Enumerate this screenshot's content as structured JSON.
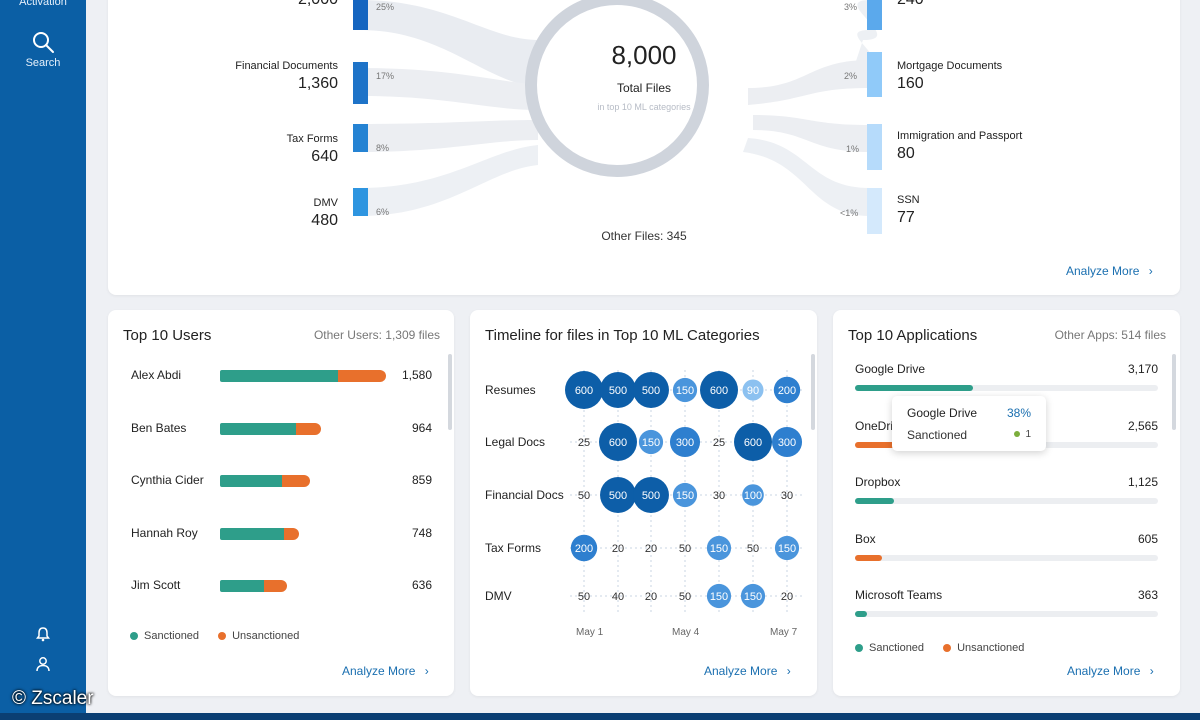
{
  "sidebar": {
    "activation_label": "Activation",
    "search_label": "Search"
  },
  "watermark": "© Zscaler",
  "flow": {
    "total": "8,000",
    "total_label": "Total Files",
    "total_sub": "in top 10 ML categories",
    "other_files": "Other Files: 345",
    "left": [
      {
        "name": "",
        "count": "2,000",
        "pct": "25%"
      },
      {
        "name": "Financial Documents",
        "count": "1,360",
        "pct": "17%"
      },
      {
        "name": "Tax Forms",
        "count": "640",
        "pct": "8%"
      },
      {
        "name": "DMV",
        "count": "480",
        "pct": "6%"
      }
    ],
    "right": [
      {
        "name": "",
        "count": "240",
        "pct": "3%"
      },
      {
        "name": "Mortgage Documents",
        "count": "160",
        "pct": "2%"
      },
      {
        "name": "Immigration and Passport",
        "count": "80",
        "pct": "1%"
      },
      {
        "name": "SSN",
        "count": "77",
        "pct": "<1%"
      }
    ],
    "analyze_label": "Analyze More",
    "colors": {
      "left_bar": "#1565c0",
      "right_bar": "#90caf9",
      "ribbon": "#e9ecf1",
      "ring": "#cfd4dc"
    }
  },
  "users": {
    "title": "Top 10 Users",
    "meta": "Other Users: 1,309 files",
    "max": 1580,
    "rows": [
      {
        "name": "Alex Abdi",
        "count": "1,580",
        "value": 1580,
        "sanctioned_frac": 0.71
      },
      {
        "name": "Ben Bates",
        "count": "964",
        "value": 964,
        "sanctioned_frac": 0.75
      },
      {
        "name": "Cynthia Cider",
        "count": "859",
        "value": 859,
        "sanctioned_frac": 0.69
      },
      {
        "name": "Hannah Roy",
        "count": "748",
        "value": 748,
        "sanctioned_frac": 0.82
      },
      {
        "name": "Jim Scott",
        "count": "636",
        "value": 636,
        "sanctioned_frac": 0.66
      }
    ],
    "legend": {
      "sanctioned": "Sanctioned",
      "unsanctioned": "Unsanctioned"
    },
    "colors": {
      "sanctioned": "#2e9e8a",
      "unsanctioned": "#e8702c"
    },
    "analyze_label": "Analyze More"
  },
  "timeline": {
    "title": "Timeline for files in Top 10 ML Categories",
    "x_labels": [
      "May 1",
      "May 4",
      "May 7"
    ],
    "rows": [
      {
        "label": "Resumes",
        "values": [
          600,
          500,
          500,
          150,
          600,
          90,
          200
        ]
      },
      {
        "label": "Legal Docs",
        "values": [
          25,
          600,
          150,
          300,
          25,
          600,
          300
        ]
      },
      {
        "label": "Financial Docs",
        "values": [
          50,
          500,
          500,
          150,
          30,
          100,
          30
        ]
      },
      {
        "label": "Tax Forms",
        "values": [
          200,
          20,
          20,
          50,
          150,
          50,
          150
        ]
      },
      {
        "label": "DMV",
        "values": [
          50,
          40,
          20,
          50,
          150,
          150,
          20
        ]
      }
    ],
    "analyze_label": "Analyze More"
  },
  "apps": {
    "title": "Top 10 Applications",
    "meta": "Other Apps: 514 files",
    "rows": [
      {
        "name": "Google Drive",
        "count": "3,170",
        "fill_frac": 0.39,
        "color": "#2e9e8a"
      },
      {
        "name": "OneDrive",
        "count": "2,565",
        "fill_frac": 0.36,
        "color": "#e8702c"
      },
      {
        "name": "Dropbox",
        "count": "1,125",
        "fill_frac": 0.13,
        "color": "#2e9e8a"
      },
      {
        "name": "Box",
        "count": "605",
        "fill_frac": 0.09,
        "color": "#e8702c"
      },
      {
        "name": "Microsoft Teams",
        "count": "363",
        "fill_frac": 0.04,
        "color": "#2e9e8a"
      }
    ],
    "tooltip": {
      "name": "Google Drive",
      "pct": "38%",
      "label": "Sanctioned",
      "value": "1"
    },
    "legend": {
      "sanctioned": "Sanctioned",
      "unsanctioned": "Unsanctioned"
    },
    "analyze_label": "Analyze More"
  }
}
